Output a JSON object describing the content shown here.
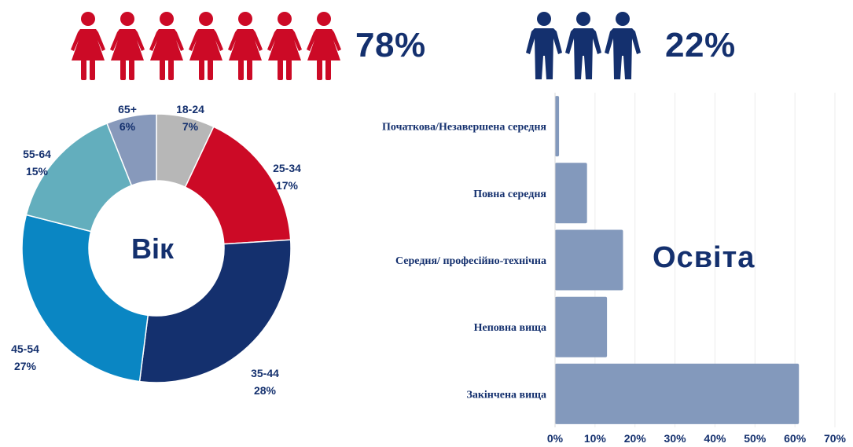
{
  "gender": {
    "female": {
      "percent": "78%",
      "icon_count": 7,
      "icon": "female-person-icon",
      "color": "#cc0a26"
    },
    "male": {
      "percent": "22%",
      "icon_count": 3,
      "icon": "male-person-icon",
      "color": "#14306e"
    }
  },
  "chart_data": [
    {
      "type": "pie",
      "title": "Вік",
      "donut": true,
      "categories": [
        "18-24",
        "25-34",
        "35-44",
        "45-54",
        "55-64",
        "65+"
      ],
      "values": [
        7,
        17,
        28,
        27,
        15,
        6
      ],
      "value_labels": [
        "7%",
        "17%",
        "28%",
        "27%",
        "15%",
        "6%"
      ],
      "colors": [
        "#b7b7b7",
        "#cc0a26",
        "#14306e",
        "#0a86c3",
        "#63aebd",
        "#8799bb"
      ]
    },
    {
      "type": "bar",
      "orientation": "horizontal",
      "title": "Освіта",
      "categories": [
        "Початкова/Незавершена середня",
        "Повна середня",
        "Середня/ професійно-технічна",
        "Неповна вища",
        "Закінчена вища"
      ],
      "values": [
        1,
        8,
        17,
        13,
        61
      ],
      "xlim": [
        0,
        70
      ],
      "xticks": [
        "0%",
        "10%",
        "20%",
        "30%",
        "40%",
        "50%",
        "60%",
        "70%"
      ],
      "grid": true,
      "bar_color": "#8399bc"
    }
  ]
}
